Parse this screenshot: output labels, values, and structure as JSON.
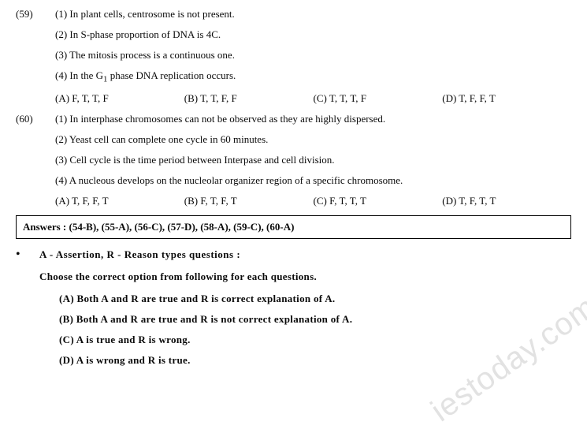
{
  "q59": {
    "number": "(59)",
    "statements": [
      "(1) In plant cells, centrosome is not present.",
      "(2) In S-phase proportion of DNA is 4C.",
      "(3) The mitosis process is a continuous one.",
      "(4) In the G<sub>1</sub> phase DNA replication occurs."
    ],
    "options": {
      "a": "(A) F, T, T, F",
      "b": "(B) T, T, F, F",
      "c": "(C) T, T, T, F",
      "d": "(D) T, F, F, T"
    }
  },
  "q60": {
    "number": "(60)",
    "statements": [
      "(1) In interphase chromosomes can not be observed as they are highly dispersed.",
      "(2) Yeast cell can complete one cycle in 60 minutes.",
      "(3) Cell cycle is the time period between Interpase and cell division.",
      "(4) A nucleous develops on the nucleolar organizer region of a specific chromosome."
    ],
    "options": {
      "a": "(A) T, F, F, T",
      "b": "(B) F, T, F, T",
      "c": "(C) F, T, T, T",
      "d": "(D) T, F, T, T"
    }
  },
  "answers_box": "Answers : (54-B), (55-A), (56-C), (57-D), (58-A), (59-C), (60-A)",
  "ar_section": {
    "heading": "A  -  Assertion,  R  -  Reason  types  questions  :",
    "instruction": "Choose  the  correct  option  from  following  for  each  questions.",
    "options": {
      "a": "(A)  Both  A  and  R  are  true  and  R  is  correct  explanation  of  A.",
      "b": "(B)  Both  A  and  R  are  true  and  R  is  not  correct  explanation  of  A.",
      "c": "(C)  A  is  true  and  R  is  wrong.",
      "d": "(D)  A  is  wrong  and  R  is  true."
    }
  },
  "watermark": "iestoday.com"
}
